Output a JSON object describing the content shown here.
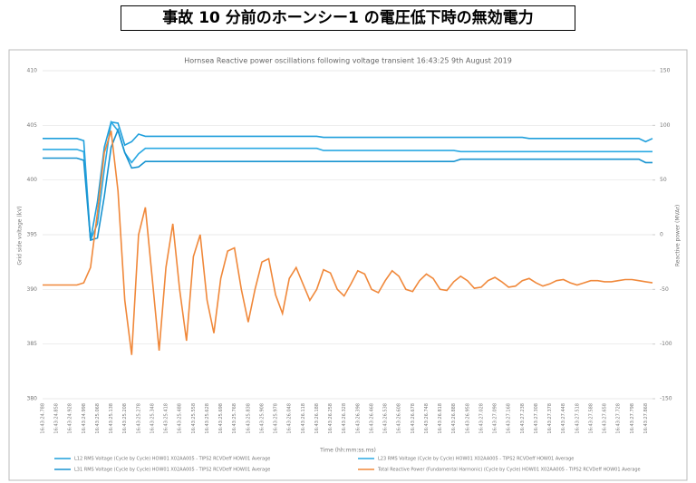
{
  "header": {
    "title": "事故 10 分前のホーンシー1 の電圧低下時の無効電力"
  },
  "chart_data": {
    "type": "line",
    "title": "Hornsea Reactive power oscillations following voltage transient 16:43:25 9th August 2019",
    "x_label": "Time (hh:mm:ss.ms)",
    "y_label": "Grid side voltage (kV)",
    "y2_label": "Reactive power (MVAr)",
    "categories": [
      "16:43:24.788",
      null,
      "16:43:24.858",
      null,
      "16:43:24.928",
      null,
      "16:43:24.998",
      null,
      "16:43:25.068",
      null,
      "16:43:25.138",
      null,
      "16:43:25.208",
      null,
      "16:43:25.278",
      null,
      "16:43:25.348",
      null,
      "16:43:25.418",
      null,
      "16:43:25.488",
      null,
      "16:43:25.558",
      null,
      "16:43:25.628",
      null,
      "16:43:25.698",
      null,
      "16:43:25.768",
      null,
      "16:43:25.838",
      null,
      "16:43:25.908",
      null,
      "16:43:25.978",
      null,
      "16:43:26.048",
      null,
      "16:43:26.118",
      null,
      "16:43:26.188",
      null,
      "16:43:26.258",
      null,
      "16:43:26.328",
      null,
      "16:43:26.398",
      null,
      "16:43:26.468",
      null,
      "16:43:26.538",
      null,
      "16:43:26.608",
      null,
      "16:43:26.678",
      null,
      "16:43:26.748",
      null,
      "16:43:26.818",
      null,
      "16:43:26.888",
      null,
      "16:43:26.958",
      null,
      "16:43:27.028",
      null,
      "16:43:27.098",
      null,
      "16:43:27.168",
      null,
      "16:43:27.238",
      null,
      "16:43:27.308",
      null,
      "16:43:27.378",
      null,
      "16:43:27.448",
      null,
      "16:43:27.518",
      null,
      "16:43:27.588",
      null,
      "16:43:27.658",
      null,
      "16:43:27.728",
      null,
      "16:43:27.798",
      null,
      "16:43:27.868",
      null
    ],
    "ylim": [
      380,
      410
    ],
    "yticks": [
      380,
      385,
      390,
      395,
      400,
      405,
      410
    ],
    "y2lim": [
      -150,
      150
    ],
    "y2ticks": [
      -150,
      -100,
      -50,
      0,
      50,
      100,
      150
    ],
    "grid": true,
    "series": [
      {
        "name": "L12 RMS Voltage (Cycle by Cycle) HOW01 X02AA005 - TIPS2 RCVDeff HOW01 Average",
        "color": "#1f9fdc",
        "values": [
          403.8,
          403.8,
          403.8,
          403.8,
          403.8,
          403.8,
          403.6,
          394.5,
          398,
          403,
          405.3,
          405.2,
          403.2,
          403.5,
          404.2,
          404,
          404,
          404,
          404,
          404,
          404,
          404,
          404,
          404,
          404,
          404,
          404,
          404,
          404,
          404,
          404,
          404,
          404,
          404,
          404,
          404,
          404,
          404,
          404,
          404,
          404,
          403.9,
          403.9,
          403.9,
          403.9,
          403.9,
          403.9,
          403.9,
          403.9,
          403.9,
          403.9,
          403.9,
          403.9,
          403.9,
          403.9,
          403.9,
          403.9,
          403.9,
          403.9,
          403.9,
          403.9,
          403.9,
          403.9,
          403.9,
          403.9,
          403.9,
          403.9,
          403.9,
          403.9,
          403.9,
          403.9,
          403.8,
          403.8,
          403.8,
          403.8,
          403.8,
          403.8,
          403.8,
          403.8,
          403.8,
          403.8,
          403.8,
          403.8,
          403.8,
          403.8,
          403.8,
          403.8,
          403.8,
          403.5,
          403.8
        ]
      },
      {
        "name": "L23 RMS Voltage (Cycle by Cycle) HOW01 X02AA005 - TIPS2 RCVDeff HOW01 Average",
        "color": "#2aa9e3",
        "values": [
          402.8,
          402.8,
          402.8,
          402.8,
          402.8,
          402.8,
          402.6,
          394.5,
          396,
          401,
          405.3,
          404.5,
          402.5,
          401.6,
          402.4,
          402.9,
          402.9,
          402.9,
          402.9,
          402.9,
          402.9,
          402.9,
          402.9,
          402.9,
          402.9,
          402.9,
          402.9,
          402.9,
          402.9,
          402.9,
          402.9,
          402.9,
          402.9,
          402.9,
          402.9,
          402.9,
          402.9,
          402.9,
          402.9,
          402.9,
          402.9,
          402.7,
          402.7,
          402.7,
          402.7,
          402.7,
          402.7,
          402.7,
          402.7,
          402.7,
          402.7,
          402.7,
          402.7,
          402.7,
          402.7,
          402.7,
          402.7,
          402.7,
          402.7,
          402.7,
          402.7,
          402.6,
          402.6,
          402.6,
          402.6,
          402.6,
          402.6,
          402.6,
          402.6,
          402.6,
          402.6,
          402.6,
          402.6,
          402.6,
          402.6,
          402.6,
          402.6,
          402.6,
          402.6,
          402.6,
          402.6,
          402.6,
          402.6,
          402.6,
          402.6,
          402.6,
          402.6,
          402.6,
          402.6,
          402.6
        ]
      },
      {
        "name": "L31 RMS Voltage (Cycle by Cycle) HOW01 X02AA005 - TIPS2 RCVDeff HOW01 Average",
        "color": "#1893d0",
        "values": [
          402,
          402,
          402,
          402,
          402,
          402,
          401.8,
          394.5,
          394.7,
          398.5,
          403,
          404.6,
          402.5,
          401.1,
          401.2,
          401.7,
          401.7,
          401.7,
          401.7,
          401.7,
          401.7,
          401.7,
          401.7,
          401.7,
          401.7,
          401.7,
          401.7,
          401.7,
          401.7,
          401.7,
          401.7,
          401.7,
          401.7,
          401.7,
          401.7,
          401.7,
          401.7,
          401.7,
          401.7,
          401.7,
          401.7,
          401.7,
          401.7,
          401.7,
          401.7,
          401.7,
          401.7,
          401.7,
          401.7,
          401.7,
          401.7,
          401.7,
          401.7,
          401.7,
          401.7,
          401.7,
          401.7,
          401.7,
          401.7,
          401.7,
          401.7,
          401.9,
          401.9,
          401.9,
          401.9,
          401.9,
          401.9,
          401.9,
          401.9,
          401.9,
          401.9,
          401.9,
          401.9,
          401.9,
          401.9,
          401.9,
          401.9,
          401.9,
          401.9,
          401.9,
          401.9,
          401.9,
          401.9,
          401.9,
          401.9,
          401.9,
          401.9,
          401.9,
          401.6,
          401.6
        ]
      },
      {
        "name": "Total Reactive Power (Fundamental Harmonic) (Cycle by Cycle) HOW01 X02AA005 - TIPS2 RCVDeff HOW01 Average",
        "color": "#f0883a",
        "axis": "y2",
        "values": [
          -46,
          -46,
          -46,
          -46,
          -46,
          -46,
          -44,
          -30,
          20,
          75,
          95,
          40,
          -60,
          -110,
          0,
          25,
          -40,
          -106,
          -30,
          10,
          -50,
          -97,
          -20,
          0,
          -60,
          -90,
          -40,
          -15,
          -12,
          -50,
          -80,
          -50,
          -25,
          -22,
          -55,
          -72,
          -40,
          -30,
          -45,
          -60,
          -50,
          -32,
          -35,
          -50,
          -56,
          -45,
          -33,
          -36,
          -50,
          -53,
          -42,
          -33,
          -38,
          -50,
          -52,
          -42,
          -36,
          -40,
          -50,
          -51,
          -43,
          -38,
          -42,
          -49,
          -48,
          -42,
          -39,
          -43,
          -48,
          -47,
          -42,
          -40,
          -44,
          -47,
          -45,
          -42,
          -41,
          -44,
          -46,
          -44,
          -42,
          -42,
          -43,
          -43,
          -42,
          -41,
          -41,
          -42,
          -43,
          -44
        ]
      }
    ]
  }
}
